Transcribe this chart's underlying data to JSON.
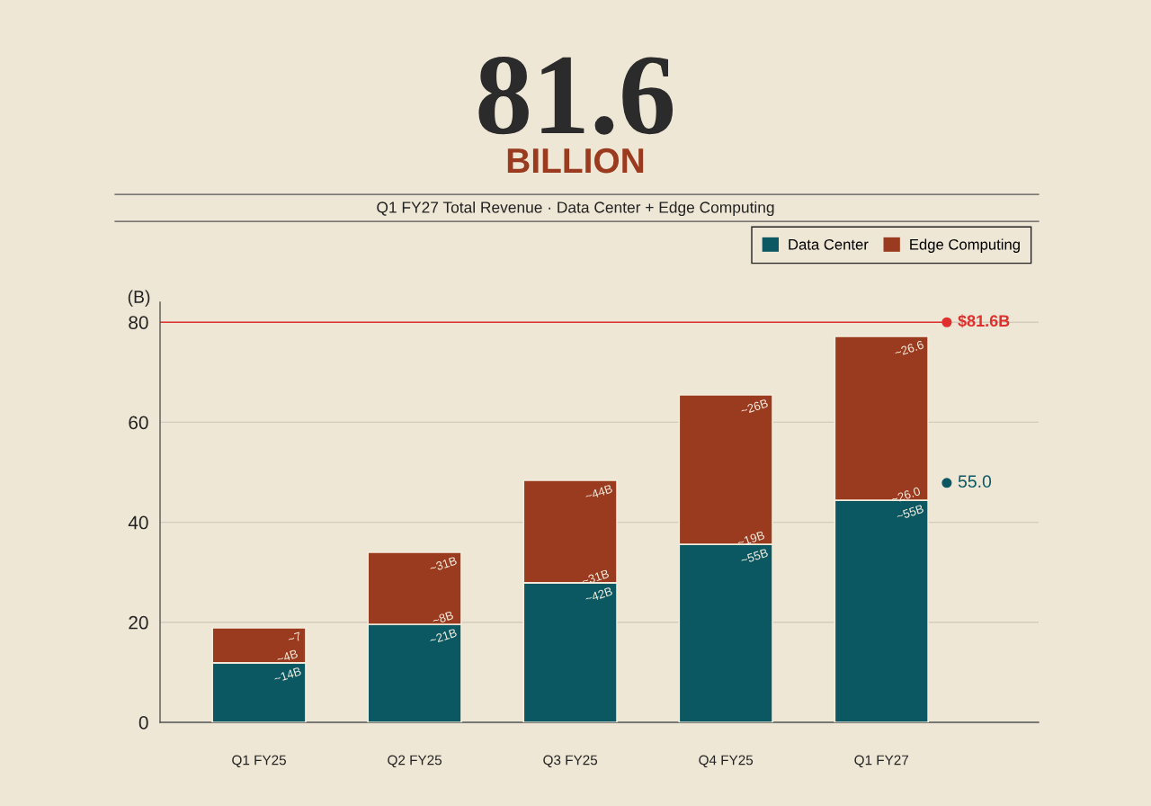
{
  "chart_data": {
    "type": "bar",
    "title": "81.6",
    "subtitle": "BILLION",
    "ylabel": "(B)",
    "categories": [
      "Q1 FY25",
      "Q2 FY25",
      "Q3 FY25",
      "Q4 FY25",
      "Q1 FY27"
    ],
    "stacked": true,
    "series": [
      {
        "name": "Data Center",
        "color": "#0b5862",
        "values": [
          11.9,
          19.6,
          27.9,
          35.6,
          44.4
        ]
      },
      {
        "name": "Edge Computing",
        "color": "#9a3a1f",
        "values": [
          7.0,
          14.4,
          20.5,
          29.9,
          32.8
        ]
      }
    ],
    "ylim": [
      0,
      84
    ],
    "yticks": [
      0,
      20,
      40,
      60,
      80
    ],
    "grid": "y",
    "legend": "top right",
    "ref_lines": [
      {
        "axis": "y",
        "value": 80,
        "label": "$81.6B",
        "color": "#e0302e"
      }
    ],
    "annotations": [
      "Q1 FY27 Total Revenue · Data Center + Edge Computing",
      {
        "text": "~14B",
        "x": "Q1 FY25",
        "y": 11.9
      },
      {
        "text": "~4B",
        "x": "Q1 FY25",
        "y": 11.9
      },
      {
        "text": "~7",
        "x": "Q1 FY25",
        "y": 18.9
      },
      {
        "text": "~21B",
        "x": "Q2 FY25",
        "y": 19.6
      },
      {
        "text": "~8B",
        "x": "Q2 FY25",
        "y": 19.6
      },
      {
        "text": "~31B",
        "x": "Q2 FY25",
        "y": 34.0
      },
      {
        "text": "~42B",
        "x": "Q3 FY25",
        "y": 27.9
      },
      {
        "text": "~31B",
        "x": "Q3 FY25",
        "y": 27.9
      },
      {
        "text": "~44B",
        "x": "Q3 FY25",
        "y": 48.4
      },
      {
        "text": "~55B",
        "x": "Q4 FY25",
        "y": 35.6
      },
      {
        "text": "~19B",
        "x": "Q4 FY25",
        "y": 35.6
      },
      {
        "text": "~26B",
        "x": "Q4 FY25",
        "y": 65.5
      },
      {
        "text": "~55B",
        "x": "Q1 FY27",
        "y": 44.4
      },
      {
        "text": "~26.0",
        "x": "Q1 FY27",
        "y": 44.4
      },
      {
        "text": "~26.6",
        "x": "Q1 FY27",
        "y": 77.2
      },
      "55.0"
    ]
  }
}
